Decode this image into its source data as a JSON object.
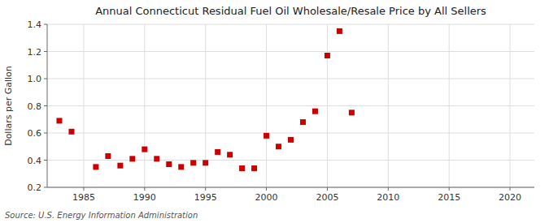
{
  "chart_data": {
    "type": "scatter",
    "title": "Annual Connecticut Residual Fuel Oil Wholesale/Resale Price by All Sellers",
    "y_label": "Dollars per Gallon",
    "annotations": [
      "Source: U.S. Energy Information Administration"
    ],
    "x": [
      1983,
      1984,
      1986,
      1987,
      1988,
      1989,
      1990,
      1991,
      1992,
      1993,
      1994,
      1995,
      1996,
      1997,
      1998,
      1999,
      2000,
      2001,
      2002,
      2003,
      2004,
      2005,
      2006,
      2007
    ],
    "values": [
      0.69,
      0.61,
      0.35,
      0.43,
      0.36,
      0.41,
      0.48,
      0.41,
      0.37,
      0.35,
      0.38,
      0.38,
      0.46,
      0.44,
      0.34,
      0.34,
      0.58,
      0.5,
      0.55,
      0.68,
      0.76,
      1.17,
      1.35,
      0.75
    ],
    "color": "#cc0000",
    "marker": "square",
    "xlim": [
      1982,
      2022
    ],
    "xticks": [
      1985,
      1990,
      1995,
      2000,
      2005,
      2010,
      2015,
      2020
    ],
    "ylim": [
      0.2,
      1.4
    ],
    "yticks": [
      0.2,
      0.4,
      0.6,
      0.8,
      {
        "value": 1.0,
        "label": "1.0"
      },
      1.2,
      1.4
    ],
    "grid": true
  }
}
